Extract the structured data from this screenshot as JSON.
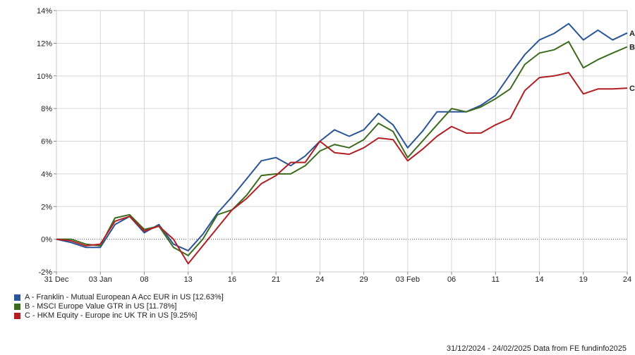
{
  "chart_data": {
    "type": "line",
    "title": "",
    "xlabel": "",
    "ylabel": "",
    "y_unit": "%",
    "ylim": [
      -2,
      14
    ],
    "y_ticks": [
      -2,
      0,
      2,
      4,
      6,
      8,
      10,
      12,
      14
    ],
    "y_tick_labels": [
      "-2%",
      "0%",
      "2%",
      "4%",
      "6%",
      "8%",
      "10%",
      "12%",
      "14%"
    ],
    "x": [
      "2024-12-31",
      "2025-01-01",
      "2025-01-02",
      "2025-01-03",
      "2025-01-06",
      "2025-01-07",
      "2025-01-08",
      "2025-01-09",
      "2025-01-10",
      "2025-01-13",
      "2025-01-14",
      "2025-01-15",
      "2025-01-16",
      "2025-01-17",
      "2025-01-20",
      "2025-01-21",
      "2025-01-22",
      "2025-01-23",
      "2025-01-24",
      "2025-01-27",
      "2025-01-28",
      "2025-01-29",
      "2025-01-30",
      "2025-01-31",
      "2025-02-03",
      "2025-02-04",
      "2025-02-05",
      "2025-02-06",
      "2025-02-07",
      "2025-02-10",
      "2025-02-11",
      "2025-02-12",
      "2025-02-13",
      "2025-02-14",
      "2025-02-17",
      "2025-02-18",
      "2025-02-19",
      "2025-02-20",
      "2025-02-21",
      "2025-02-24"
    ],
    "x_ticks": [
      {
        "date": "2024-12-31",
        "label": "31 Dec"
      },
      {
        "date": "2025-01-03",
        "label": "03 Jan"
      },
      {
        "date": "2025-01-08",
        "label": "08"
      },
      {
        "date": "2025-01-13",
        "label": "13"
      },
      {
        "date": "2025-01-16",
        "label": "16"
      },
      {
        "date": "2025-01-21",
        "label": "21"
      },
      {
        "date": "2025-01-24",
        "label": "24"
      },
      {
        "date": "2025-01-29",
        "label": "29"
      },
      {
        "date": "2025-02-03",
        "label": "03 Feb"
      },
      {
        "date": "2025-02-06",
        "label": "06"
      },
      {
        "date": "2025-02-11",
        "label": "11"
      },
      {
        "date": "2025-02-14",
        "label": "14"
      },
      {
        "date": "2025-02-19",
        "label": "19"
      },
      {
        "date": "2025-02-24",
        "label": "24"
      }
    ],
    "series": [
      {
        "name": "A - Franklin - Mutual European A Acc EUR in US [12.63%]",
        "end_label": "A",
        "color": "#2a5597",
        "values": [
          0.0,
          -0.2,
          -0.5,
          -0.5,
          0.9,
          1.4,
          0.4,
          0.9,
          -0.3,
          -0.7,
          0.3,
          1.6,
          2.6,
          3.7,
          4.8,
          5.0,
          4.5,
          5.1,
          6.0,
          6.7,
          6.3,
          6.7,
          7.7,
          7.0,
          5.6,
          6.6,
          7.8,
          7.8,
          7.8,
          8.2,
          8.8,
          10.1,
          11.3,
          12.2,
          12.6,
          13.2,
          12.2,
          12.8,
          12.2,
          12.63
        ]
      },
      {
        "name": "B - MSCI Europe Value GTR in US [11.78%]",
        "end_label": "B",
        "color": "#3d6b1e",
        "values": [
          0.0,
          0.0,
          -0.3,
          -0.4,
          1.3,
          1.5,
          0.6,
          0.8,
          -0.5,
          -1.0,
          0.0,
          1.5,
          1.8,
          2.7,
          3.9,
          4.0,
          4.0,
          4.5,
          5.4,
          5.8,
          5.6,
          6.1,
          7.1,
          6.6,
          5.0,
          6.0,
          7.0,
          8.0,
          7.8,
          8.1,
          8.6,
          9.2,
          10.7,
          11.4,
          11.6,
          12.1,
          10.5,
          11.0,
          11.4,
          11.78
        ]
      },
      {
        "name": "C - HKM Equity - Europe inc UK TR in US [9.25%]",
        "end_label": "C",
        "color": "#b11f24",
        "values": [
          0.0,
          -0.1,
          -0.4,
          -0.3,
          1.1,
          1.4,
          0.5,
          0.8,
          0.0,
          -1.5,
          -0.4,
          0.7,
          1.8,
          2.5,
          3.4,
          3.9,
          4.7,
          4.7,
          6.0,
          5.3,
          5.2,
          5.6,
          6.2,
          6.1,
          4.8,
          5.5,
          6.3,
          6.9,
          6.5,
          6.5,
          7.0,
          7.4,
          9.1,
          9.9,
          10.0,
          10.2,
          8.9,
          9.2,
          9.2,
          9.25
        ]
      }
    ],
    "grid": true,
    "zero_line": "dotted",
    "legend_placement": "bottom-left"
  },
  "footer": {
    "text": "31/12/2024 - 24/02/2025 Data from FE fundinfo2025"
  }
}
